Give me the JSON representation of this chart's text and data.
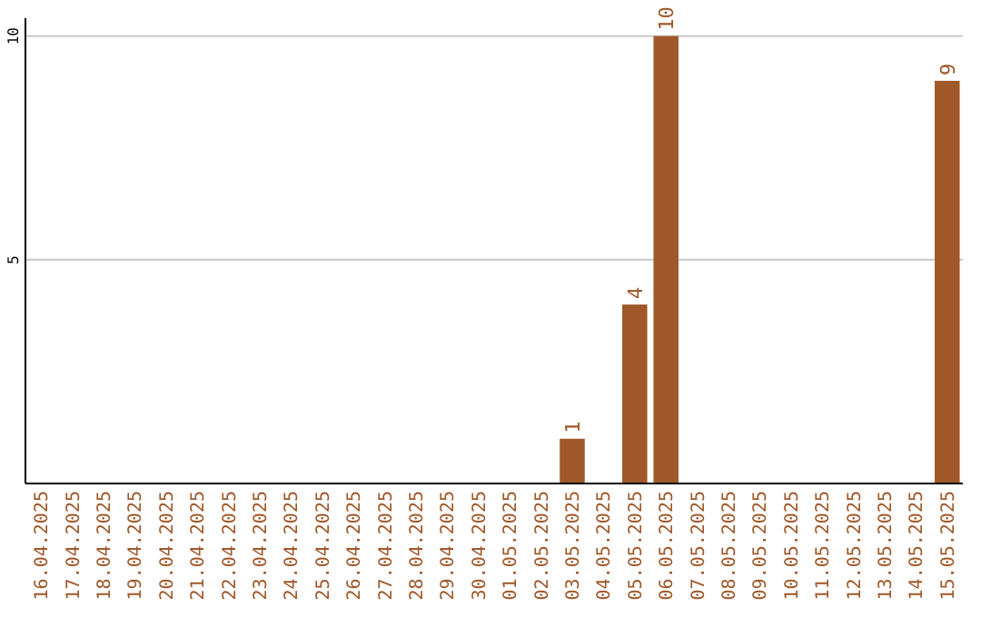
{
  "chart_data": {
    "type": "bar",
    "categories": [
      "16.04.2025",
      "17.04.2025",
      "18.04.2025",
      "19.04.2025",
      "20.04.2025",
      "21.04.2025",
      "22.04.2025",
      "23.04.2025",
      "24.04.2025",
      "25.04.2025",
      "26.04.2025",
      "27.04.2025",
      "28.04.2025",
      "29.04.2025",
      "30.04.2025",
      "01.05.2025",
      "02.05.2025",
      "03.05.2025",
      "04.05.2025",
      "05.05.2025",
      "06.05.2025",
      "07.05.2025",
      "08.05.2025",
      "09.05.2025",
      "10.05.2025",
      "11.05.2025",
      "12.05.2025",
      "13.05.2025",
      "14.05.2025",
      "15.05.2025"
    ],
    "values": [
      0,
      0,
      0,
      0,
      0,
      0,
      0,
      0,
      0,
      0,
      0,
      0,
      0,
      0,
      0,
      0,
      0,
      1,
      0,
      4,
      10,
      0,
      0,
      0,
      0,
      0,
      0,
      0,
      0,
      9
    ],
    "value_labels": [
      null,
      null,
      null,
      null,
      null,
      null,
      null,
      null,
      null,
      null,
      null,
      null,
      null,
      null,
      null,
      null,
      null,
      "1",
      null,
      "4",
      "10",
      null,
      null,
      null,
      null,
      null,
      null,
      null,
      null,
      "9"
    ],
    "color": "#a0582a",
    "ylim": [
      0,
      10.4
    ],
    "yticks": [
      5,
      10
    ],
    "grid": "y"
  }
}
